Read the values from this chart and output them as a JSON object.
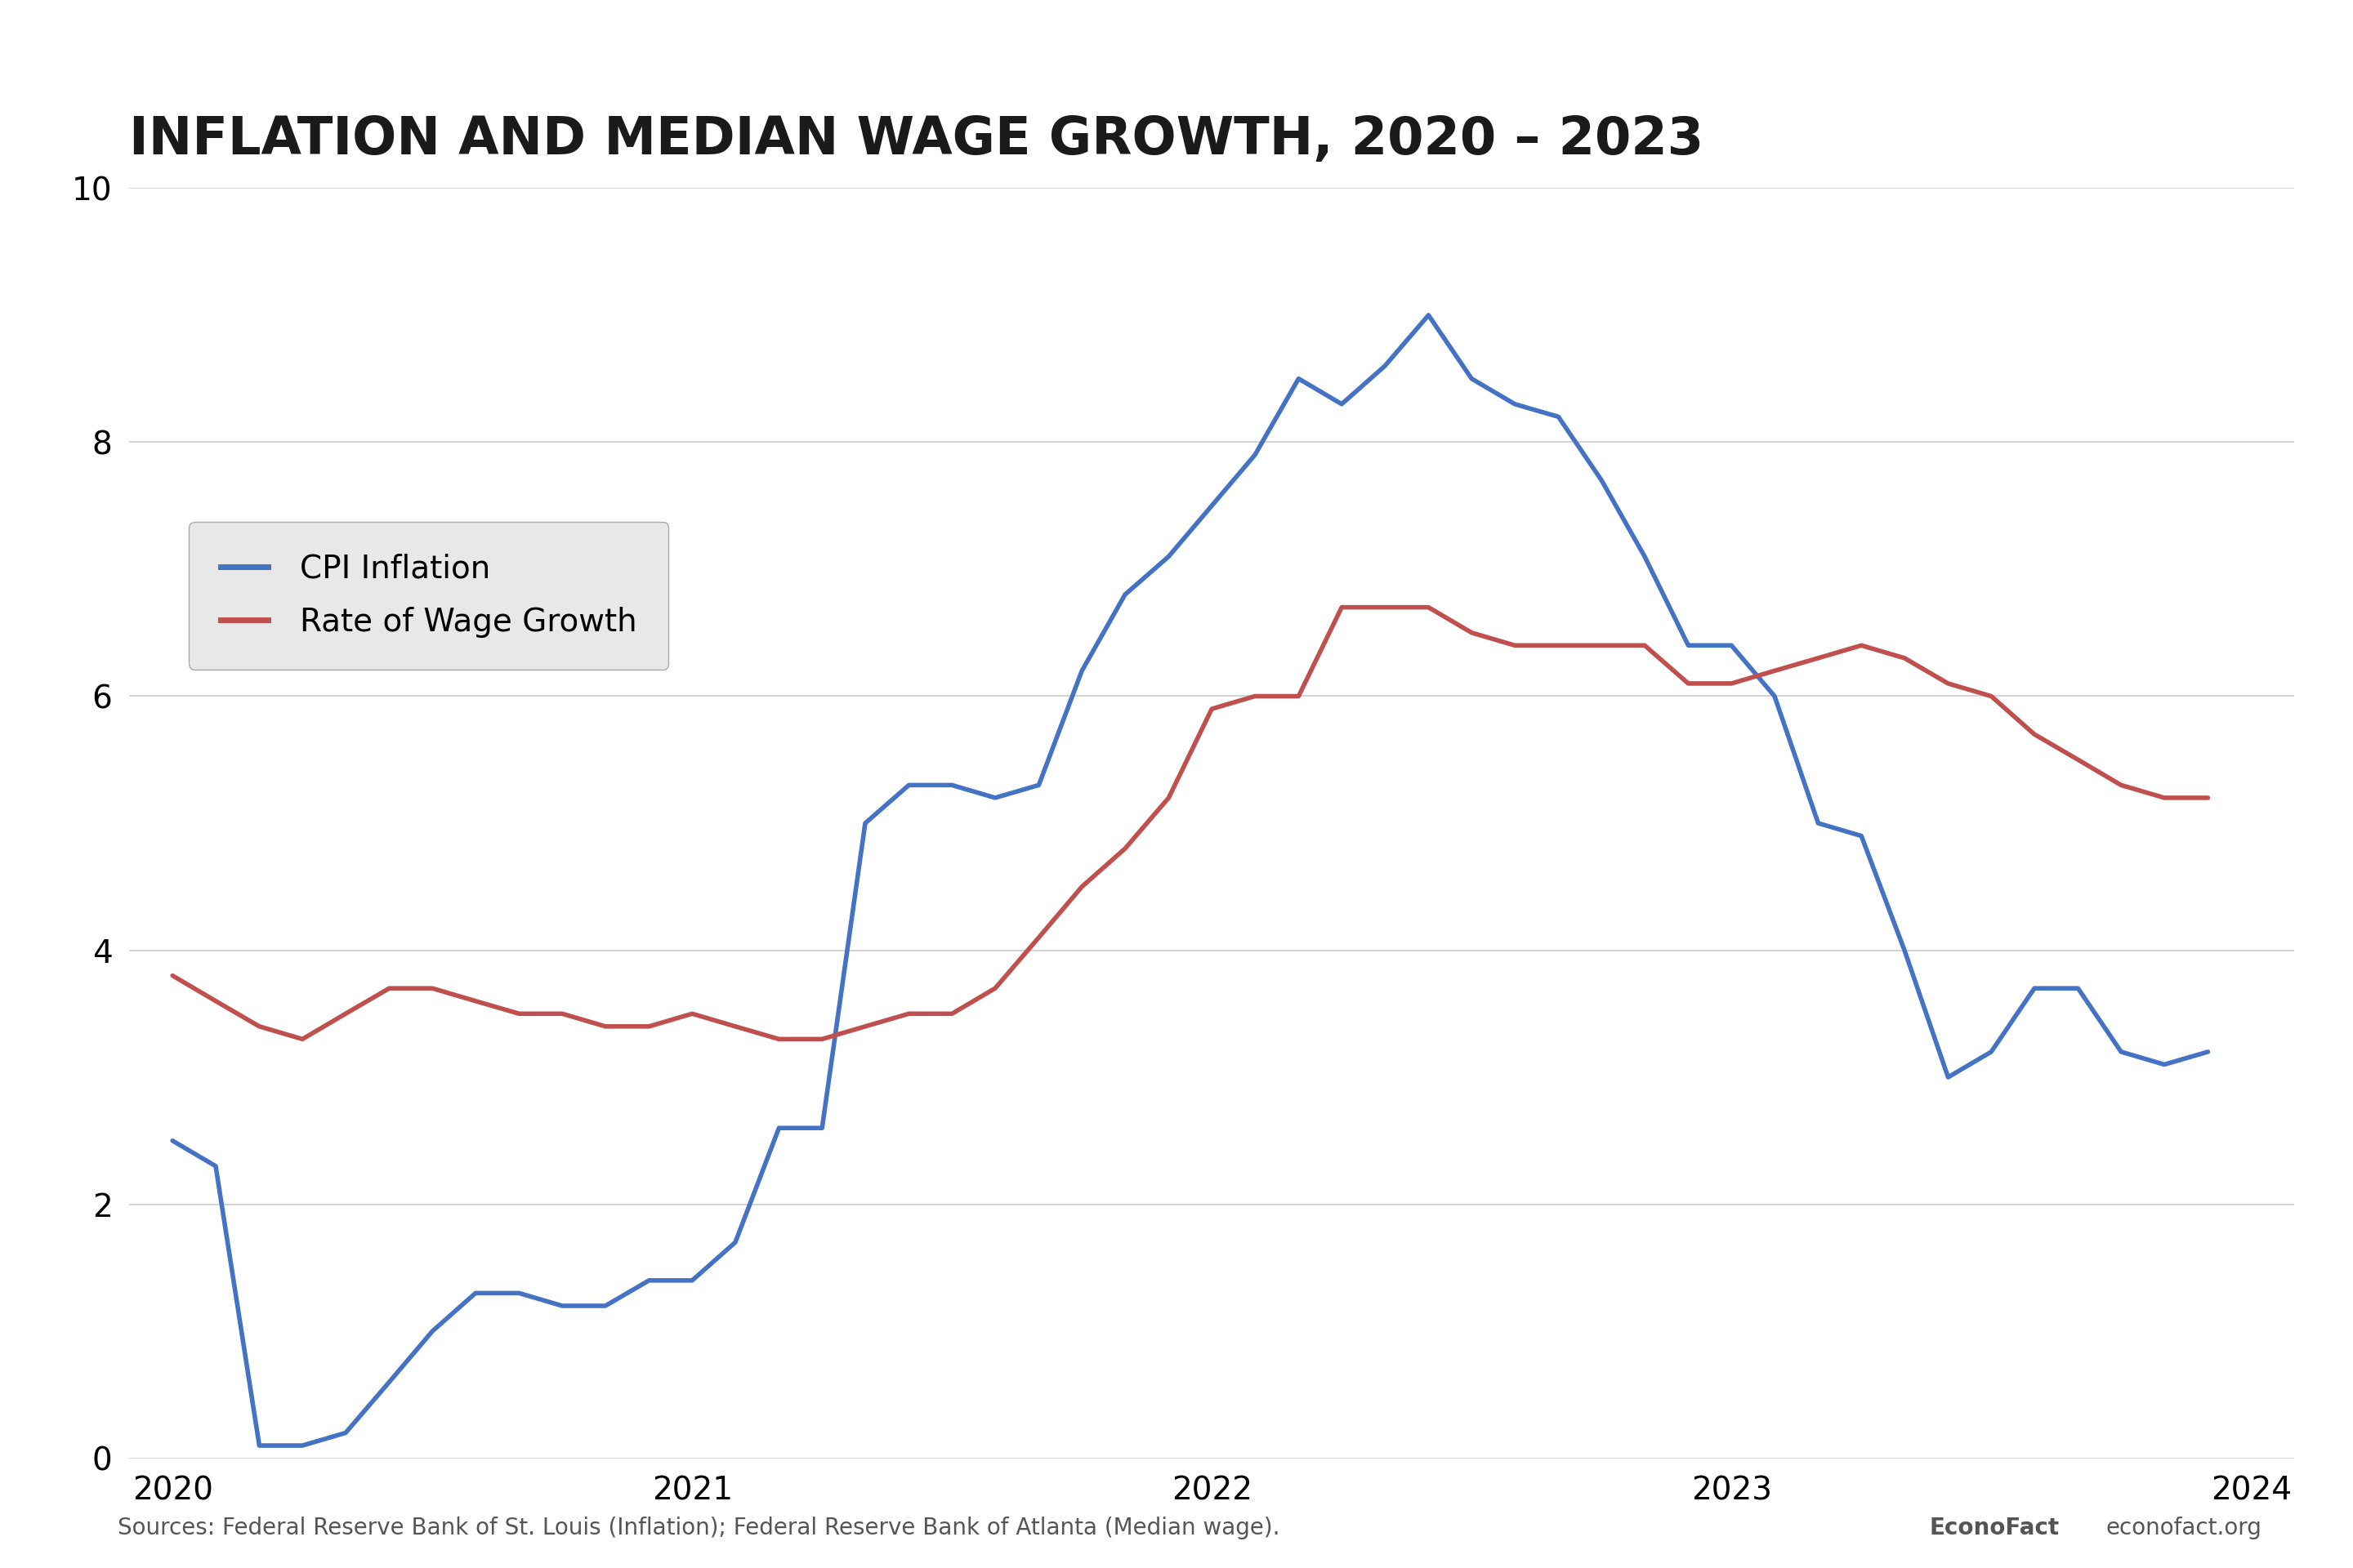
{
  "title": "INFLATION AND MEDIAN WAGE GROWTH, 2020 – 2023",
  "cpi_x": [
    2020.0,
    2020.083,
    2020.167,
    2020.25,
    2020.333,
    2020.417,
    2020.5,
    2020.583,
    2020.667,
    2020.75,
    2020.833,
    2020.917,
    2021.0,
    2021.083,
    2021.167,
    2021.25,
    2021.333,
    2021.417,
    2021.5,
    2021.583,
    2021.667,
    2021.75,
    2021.833,
    2021.917,
    2022.0,
    2022.083,
    2022.167,
    2022.25,
    2022.333,
    2022.417,
    2022.5,
    2022.583,
    2022.667,
    2022.75,
    2022.833,
    2022.917,
    2023.0,
    2023.083,
    2023.167,
    2023.25,
    2023.333,
    2023.417,
    2023.5,
    2023.583,
    2023.667,
    2023.75,
    2023.833,
    2023.917
  ],
  "cpi_y": [
    2.5,
    2.3,
    0.1,
    0.1,
    0.2,
    0.6,
    1.0,
    1.3,
    1.3,
    1.2,
    1.2,
    1.4,
    1.4,
    1.7,
    2.6,
    2.6,
    5.0,
    5.3,
    5.3,
    5.2,
    5.3,
    6.2,
    6.8,
    7.1,
    7.5,
    7.9,
    8.5,
    8.3,
    8.6,
    9.0,
    8.5,
    8.3,
    8.2,
    7.7,
    7.1,
    6.4,
    6.4,
    6.0,
    5.0,
    4.9,
    4.0,
    3.0,
    3.2,
    3.7,
    3.7,
    3.2,
    3.1,
    3.2
  ],
  "wage_x": [
    2020.0,
    2020.083,
    2020.167,
    2020.25,
    2020.333,
    2020.417,
    2020.5,
    2020.583,
    2020.667,
    2020.75,
    2020.833,
    2020.917,
    2021.0,
    2021.083,
    2021.167,
    2021.25,
    2021.333,
    2021.417,
    2021.5,
    2021.583,
    2021.667,
    2021.75,
    2021.833,
    2021.917,
    2022.0,
    2022.083,
    2022.167,
    2022.25,
    2022.333,
    2022.417,
    2022.5,
    2022.583,
    2022.667,
    2022.75,
    2022.833,
    2022.917,
    2023.0,
    2023.083,
    2023.167,
    2023.25,
    2023.333,
    2023.417,
    2023.5,
    2023.583,
    2023.667,
    2023.75,
    2023.833,
    2023.917
  ],
  "wage_y": [
    3.8,
    3.6,
    3.4,
    3.3,
    3.5,
    3.7,
    3.7,
    3.6,
    3.5,
    3.5,
    3.4,
    3.4,
    3.5,
    3.4,
    3.3,
    3.3,
    3.4,
    3.5,
    3.5,
    3.7,
    4.1,
    4.5,
    4.8,
    5.2,
    5.9,
    6.0,
    6.0,
    6.7,
    6.7,
    6.7,
    6.5,
    6.4,
    6.4,
    6.4,
    6.4,
    6.1,
    6.1,
    6.2,
    6.3,
    6.4,
    6.3,
    6.1,
    6.0,
    5.7,
    5.5,
    5.3,
    5.2,
    5.2
  ],
  "cpi_color": "#4472C4",
  "wage_color": "#C0504D",
  "background_color": "#FFFFFF",
  "plot_bg_color": "#FFFFFF",
  "grid_color": "#CCCCCC",
  "ylim": [
    0,
    10
  ],
  "yticks": [
    0,
    2,
    4,
    6,
    8,
    10
  ],
  "xlim": [
    2019.917,
    2024.083
  ],
  "xtick_labels": [
    "2020",
    "2021",
    "2022",
    "2023",
    "2024"
  ],
  "xtick_positions": [
    2020,
    2021,
    2022,
    2023,
    2024
  ],
  "legend_labels": [
    "CPI Inflation",
    "Rate of Wage Growth"
  ],
  "legend_colors": [
    "#4472C4",
    "#C0504D"
  ],
  "source_text": "Sources: Federal Reserve Bank of St. Louis (Inflation); Federal Reserve Bank of Atlanta (Median wage).",
  "right_text1": "EconoFact",
  "right_text2": "econofact.org",
  "line_width": 4.0,
  "title_fontsize": 46,
  "axis_fontsize": 28,
  "legend_fontsize": 28,
  "source_fontsize": 20
}
